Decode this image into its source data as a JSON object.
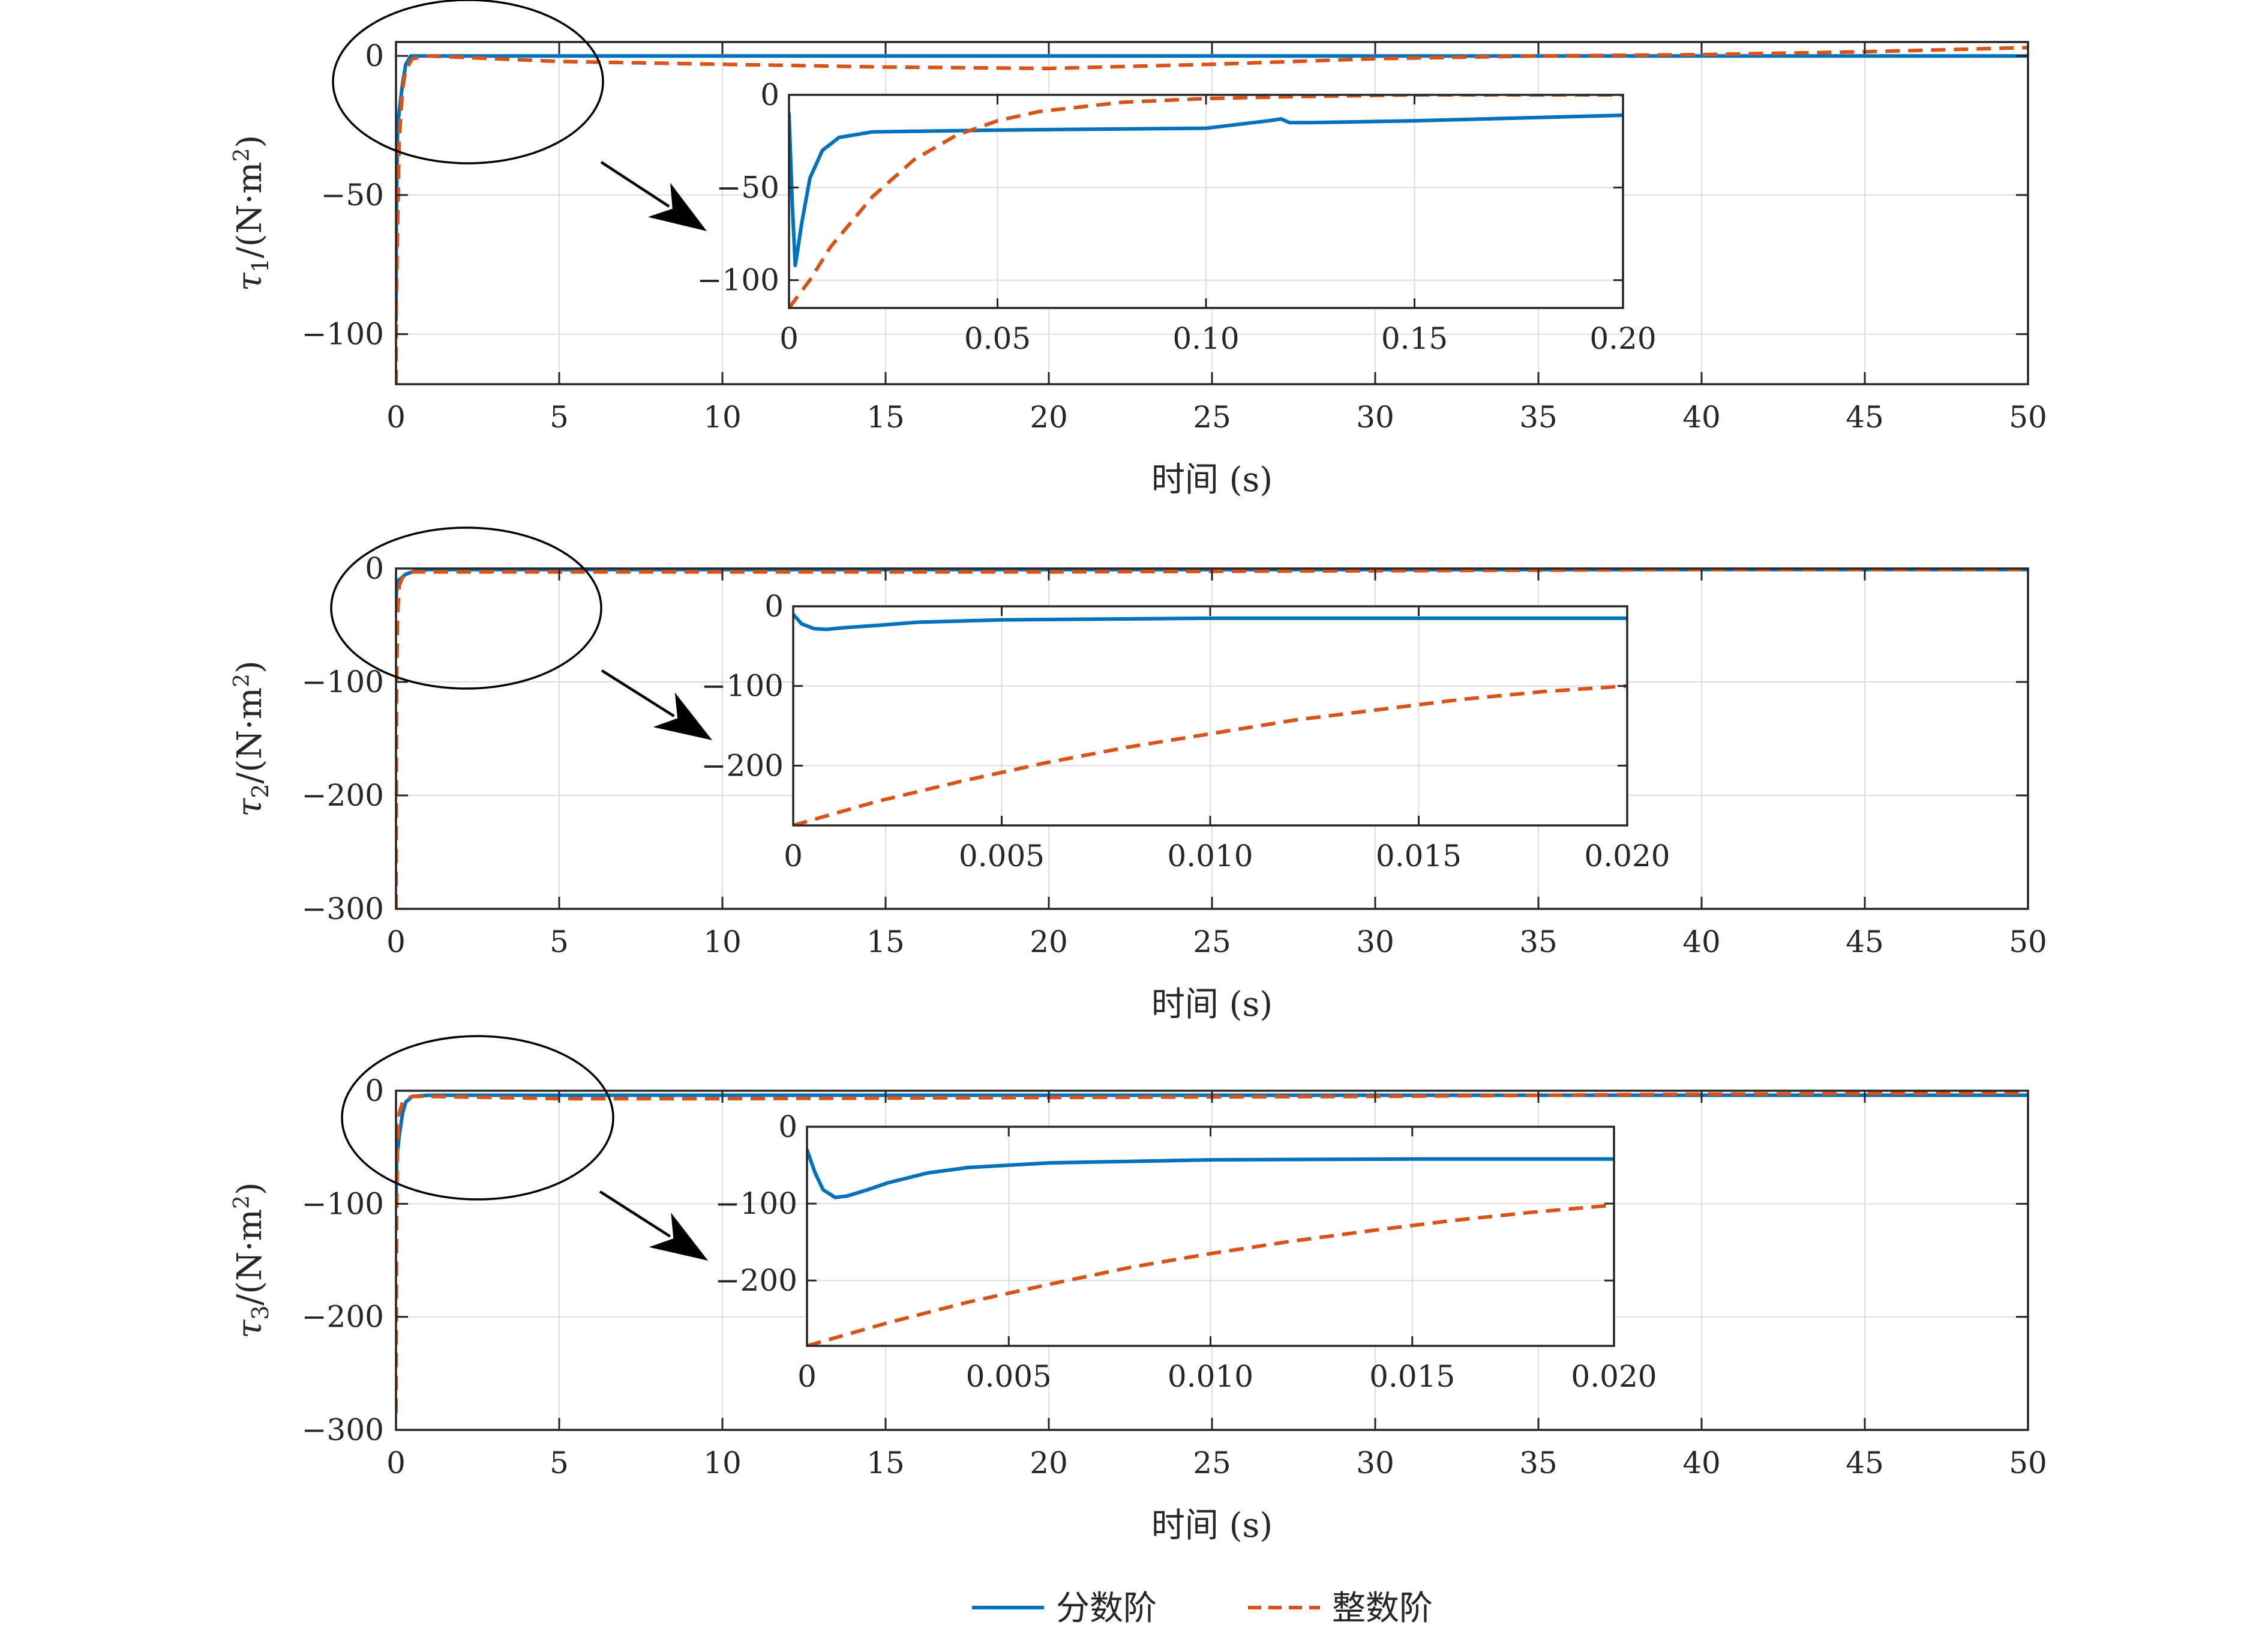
{
  "chart_data": [
    {
      "type": "line",
      "ylabel_symbol": "τ",
      "ylabel_sub": "1",
      "ylabel_unit": "/(N·m",
      "ylabel_sup": "2",
      "ylabel_close": ")",
      "xlabel": "时间 (s)",
      "xlim": [
        0,
        50
      ],
      "ylim": [
        -118,
        5
      ],
      "xticks": [
        0,
        5,
        10,
        15,
        20,
        25,
        30,
        35,
        40,
        45,
        50
      ],
      "xtick_labels": [
        "0",
        "5",
        "10",
        "15",
        "20",
        "25",
        "30",
        "35",
        "40",
        "45",
        "50"
      ],
      "yticks": [
        0,
        -50,
        -100
      ],
      "ytick_labels": [
        "0",
        "−50",
        "−100"
      ],
      "grid": true,
      "series": [
        {
          "name": "分数阶",
          "color": "#0072BD",
          "style": "solid",
          "x": [
            0,
            0.01,
            0.05,
            0.12,
            0.2,
            0.3,
            0.45,
            1,
            5,
            10,
            20,
            30,
            40,
            50
          ],
          "y": [
            -95,
            -60,
            -25,
            -18,
            -10,
            -3,
            0,
            0,
            0,
            0,
            0,
            0,
            0,
            0
          ]
        },
        {
          "name": "整数阶",
          "color": "#D95319",
          "style": "dashed",
          "x": [
            0,
            0.01,
            0.05,
            0.1,
            0.2,
            0.3,
            0.5,
            1,
            5,
            10,
            15,
            20,
            25,
            30,
            35,
            40,
            45,
            50
          ],
          "y": [
            -118,
            -90,
            -60,
            -30,
            -12,
            -5,
            -1,
            0,
            -2,
            -3,
            -4,
            -4.5,
            -3,
            -1,
            0,
            0.5,
            1.5,
            3
          ]
        }
      ],
      "inset": {
        "xlim": [
          0,
          0.2
        ],
        "ylim": [
          -115,
          0
        ],
        "xticks": [
          0,
          0.05,
          0.1,
          0.15,
          0.2
        ],
        "xtick_labels": [
          "0",
          "0.05",
          "0.10",
          "0.15",
          "0.20"
        ],
        "yticks": [
          0,
          -50,
          -100
        ],
        "ytick_labels": [
          "0",
          "−50",
          "−100"
        ],
        "series": [
          {
            "name": "分数阶",
            "color": "#0072BD",
            "style": "solid",
            "x": [
              0,
              0.0008,
              0.0015,
              0.002,
              0.003,
              0.005,
              0.008,
              0.012,
              0.02,
              0.05,
              0.1,
              0.115,
              0.118,
              0.12,
              0.125,
              0.15,
              0.2
            ],
            "y": [
              -10,
              -60,
              -92,
              -85,
              -70,
              -45,
              -30,
              -23,
              -20,
              -19,
              -18,
              -14,
              -13,
              -15,
              -15,
              -14,
              -11
            ]
          },
          {
            "name": "整数阶",
            "color": "#D95319",
            "style": "dashed",
            "x": [
              0,
              0.005,
              0.01,
              0.02,
              0.03,
              0.04,
              0.05,
              0.06,
              0.08,
              0.1,
              0.12,
              0.15,
              0.2
            ],
            "y": [
              -115,
              -100,
              -82,
              -55,
              -35,
              -22,
              -14,
              -9,
              -4,
              -2,
              -1,
              0,
              0
            ]
          }
        ]
      }
    },
    {
      "type": "line",
      "ylabel_symbol": "τ",
      "ylabel_sub": "2",
      "ylabel_unit": "/(N·m",
      "ylabel_sup": "2",
      "ylabel_close": ")",
      "xlabel": "时间 (s)",
      "xlim": [
        0,
        50
      ],
      "ylim": [
        -300,
        0
      ],
      "xticks": [
        0,
        5,
        10,
        15,
        20,
        25,
        30,
        35,
        40,
        45,
        50
      ],
      "xtick_labels": [
        "0",
        "5",
        "10",
        "15",
        "20",
        "25",
        "30",
        "35",
        "40",
        "45",
        "50"
      ],
      "yticks": [
        0,
        -100,
        -200,
        -300
      ],
      "ytick_labels": [
        "0",
        "−100",
        "−200",
        "−300"
      ],
      "grid": true,
      "series": [
        {
          "name": "分数阶",
          "color": "#0072BD",
          "style": "solid",
          "x": [
            0,
            0.002,
            0.005,
            0.02,
            0.1,
            0.3,
            0.6,
            1,
            50
          ],
          "y": [
            -10,
            -20,
            -25,
            -18,
            -10,
            -5,
            -2,
            -1,
            -1
          ]
        },
        {
          "name": "整数阶",
          "color": "#D95319",
          "style": "dashed",
          "x": [
            0,
            0.02,
            0.05,
            0.1,
            0.2,
            0.3,
            0.5,
            1,
            5,
            10,
            20,
            30,
            40,
            50
          ],
          "y": [
            -300,
            -100,
            -40,
            -15,
            -8,
            -5,
            -3,
            -3,
            -3,
            -3,
            -3,
            -2,
            -1,
            -1
          ]
        }
      ],
      "inset": {
        "xlim": [
          0,
          0.02
        ],
        "ylim": [
          -275,
          0
        ],
        "xticks": [
          0,
          0.005,
          0.01,
          0.015,
          0.02
        ],
        "xtick_labels": [
          "0",
          "0.005",
          "0.010",
          "0.015",
          "0.020"
        ],
        "yticks": [
          0,
          -100,
          -200
        ],
        "ytick_labels": [
          "0",
          "−100",
          "−200"
        ],
        "series": [
          {
            "name": "分数阶",
            "color": "#0072BD",
            "style": "solid",
            "x": [
              0,
              0.0002,
              0.0005,
              0.0008,
              0.0012,
              0.002,
              0.003,
              0.005,
              0.01,
              0.015,
              0.02
            ],
            "y": [
              -10,
              -22,
              -28,
              -29,
              -27,
              -24,
              -20,
              -17,
              -15,
              -15,
              -15
            ]
          },
          {
            "name": "整数阶",
            "color": "#D95319",
            "style": "dashed",
            "x": [
              0,
              0.002,
              0.004,
              0.006,
              0.008,
              0.01,
              0.012,
              0.014,
              0.016,
              0.018,
              0.02
            ],
            "y": [
              -275,
              -245,
              -220,
              -197,
              -177,
              -160,
              -143,
              -130,
              -117,
              -107,
              -100
            ]
          }
        ]
      }
    },
    {
      "type": "line",
      "ylabel_symbol": "τ",
      "ylabel_sub": "3",
      "ylabel_unit": "/(N·m",
      "ylabel_sup": "2",
      "ylabel_close": ")",
      "xlabel": "时间 (s)",
      "xlim": [
        0,
        50
      ],
      "ylim": [
        -300,
        0
      ],
      "xticks": [
        0,
        5,
        10,
        15,
        20,
        25,
        30,
        35,
        40,
        45,
        50
      ],
      "xtick_labels": [
        "0",
        "5",
        "10",
        "15",
        "20",
        "25",
        "30",
        "35",
        "40",
        "45",
        "50"
      ],
      "yticks": [
        0,
        -100,
        -200,
        -300
      ],
      "ytick_labels": [
        "0",
        "−100",
        "−200",
        "−300"
      ],
      "grid": true,
      "series": [
        {
          "name": "分数阶",
          "color": "#0072BD",
          "style": "solid",
          "x": [
            0,
            0.002,
            0.005,
            0.02,
            0.1,
            0.2,
            0.3,
            0.5,
            1,
            50
          ],
          "y": [
            -30,
            -60,
            -90,
            -60,
            -40,
            -20,
            -10,
            -5,
            -4,
            -4
          ]
        },
        {
          "name": "整数阶",
          "color": "#D95319",
          "style": "dashed",
          "x": [
            0,
            0.02,
            0.05,
            0.1,
            0.2,
            0.3,
            0.5,
            1,
            5,
            10,
            20,
            30,
            40,
            50
          ],
          "y": [
            -285,
            -110,
            -45,
            -20,
            -10,
            -7,
            -5,
            -5,
            -7,
            -7,
            -6,
            -5,
            -3,
            -2
          ]
        }
      ],
      "inset": {
        "xlim": [
          0,
          0.02
        ],
        "ylim": [
          -285,
          0
        ],
        "xticks": [
          0,
          0.005,
          0.01,
          0.015,
          0.02
        ],
        "xtick_labels": [
          "0",
          "0.005",
          "0.010",
          "0.015",
          "0.020"
        ],
        "yticks": [
          0,
          -100,
          -200
        ],
        "ytick_labels": [
          "0",
          "−100",
          "−200"
        ],
        "series": [
          {
            "name": "分数阶",
            "color": "#0072BD",
            "style": "solid",
            "x": [
              0,
              0.0002,
              0.0004,
              0.0007,
              0.001,
              0.0015,
              0.002,
              0.003,
              0.004,
              0.006,
              0.01,
              0.015,
              0.02
            ],
            "y": [
              -30,
              -60,
              -82,
              -92,
              -90,
              -82,
              -73,
              -60,
              -53,
              -47,
              -43,
              -42,
              -42
            ]
          },
          {
            "name": "整数阶",
            "color": "#D95319",
            "style": "dashed",
            "x": [
              0,
              0.002,
              0.004,
              0.006,
              0.008,
              0.01,
              0.012,
              0.014,
              0.016,
              0.018,
              0.02
            ],
            "y": [
              -285,
              -255,
              -228,
              -205,
              -183,
              -165,
              -149,
              -135,
              -122,
              -111,
              -102
            ]
          }
        ]
      }
    }
  ],
  "legend": {
    "items": [
      {
        "label": "分数阶",
        "color": "#0072BD",
        "style": "solid"
      },
      {
        "label": "整数阶",
        "color": "#D95319",
        "style": "dashed"
      }
    ],
    "placement": "bottom-center"
  }
}
